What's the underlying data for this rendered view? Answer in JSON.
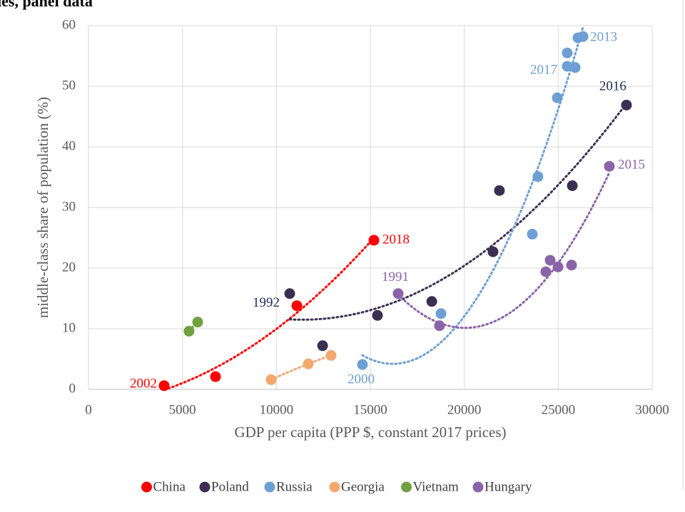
{
  "chart_data": {
    "type": "scatter",
    "title": "ies, panel data",
    "x_label": "GDP per capita (PPP $, constant 2017 prices)",
    "y_label": "middle-class share of population (%)",
    "xlim": [
      0,
      30000
    ],
    "ylim": [
      0,
      60
    ],
    "xticks": [
      0,
      5000,
      10000,
      15000,
      20000,
      25000,
      30000
    ],
    "yticks": [
      0,
      10,
      20,
      30,
      40,
      50,
      60
    ],
    "grid": true,
    "trendline": "polynomial",
    "legend": "bottom",
    "series": [
      {
        "name": "China",
        "color": "#ff0000",
        "x": [
          4025,
          6760,
          11090,
          15190
        ],
        "values": [
          0.6,
          2.1,
          13.8,
          24.6
        ],
        "point_labels": [
          "2002",
          null,
          null,
          "2018"
        ]
      },
      {
        "name": "Poland",
        "color": "#3b3052",
        "x": [
          10710,
          12460,
          15380,
          18270,
          21530,
          21870,
          25750,
          28630
        ],
        "values": [
          15.8,
          7.2,
          12.2,
          14.5,
          22.7,
          32.8,
          33.6,
          46.9
        ],
        "point_labels": [
          "1992",
          null,
          null,
          null,
          null,
          null,
          null,
          "2016"
        ]
      },
      {
        "name": "Russia",
        "color": "#6e9fd4",
        "x": [
          14580,
          18760,
          23620,
          23920,
          24950,
          25480,
          25480,
          25900,
          26050,
          26320
        ],
        "values": [
          4.1,
          12.5,
          25.6,
          35.1,
          48.1,
          55.5,
          53.3,
          53.1,
          58.0,
          58.2
        ],
        "point_labels": [
          "2000",
          null,
          null,
          null,
          null,
          null,
          "2017",
          null,
          null,
          "2013"
        ]
      },
      {
        "name": "Georgia",
        "color": "#f4a870",
        "x": [
          9720,
          11700,
          12910
        ],
        "values": [
          1.6,
          4.2,
          5.6
        ],
        "point_labels": [
          null,
          null,
          null
        ]
      },
      {
        "name": "Vietnam",
        "color": "#70a040",
        "x": [
          5350,
          5810
        ],
        "values": [
          9.6,
          11.1
        ],
        "point_labels": [
          null,
          null
        ]
      },
      {
        "name": "Hungary",
        "color": "#8a64a8",
        "x": [
          16480,
          18680,
          24340,
          24570,
          24990,
          25710,
          27720
        ],
        "values": [
          15.8,
          10.5,
          19.4,
          21.3,
          20.2,
          20.5,
          36.8
        ],
        "point_labels": [
          "1991",
          null,
          null,
          null,
          null,
          null,
          "2015"
        ]
      }
    ]
  }
}
